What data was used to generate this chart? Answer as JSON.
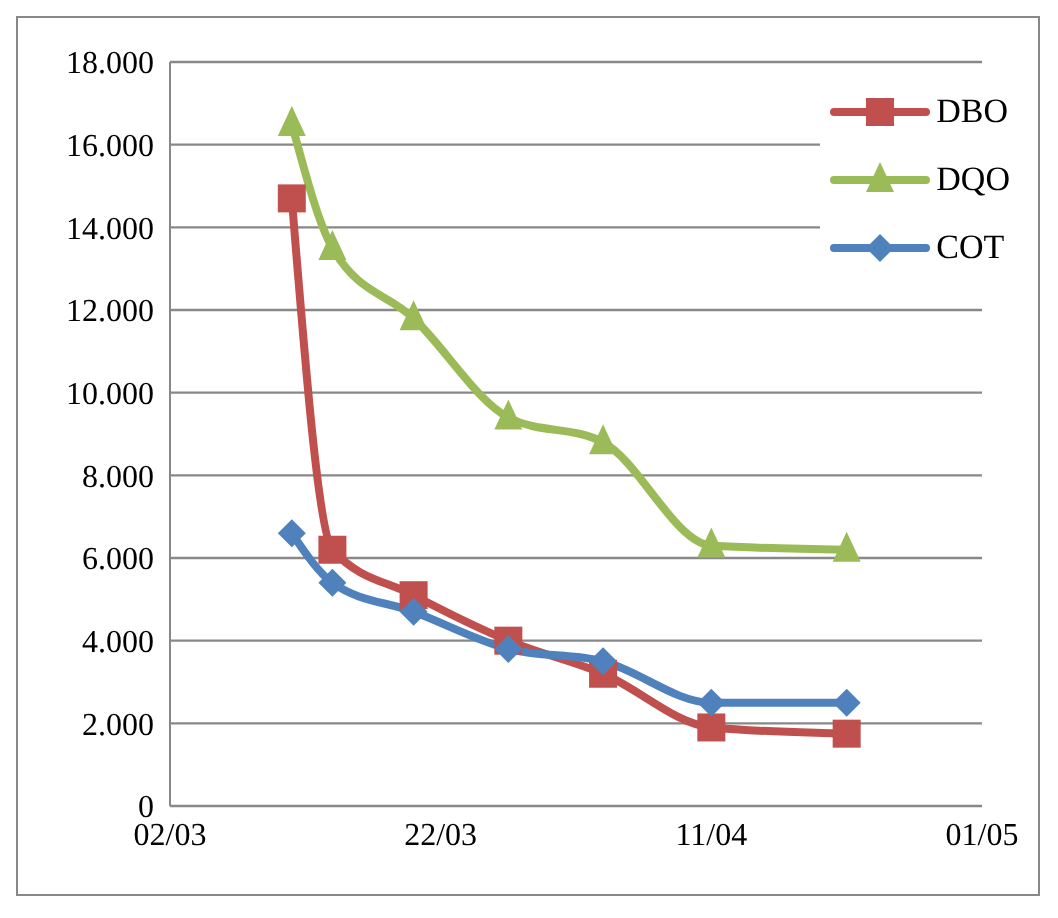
{
  "chart_data": {
    "type": "line",
    "x": [
      "--03-11",
      "--03-14",
      "--03-20",
      "--03-27",
      "--04-03",
      "--04-11",
      "--04-21"
    ],
    "series": [
      {
        "name": "DBO",
        "color": "#c0504d",
        "marker": "square",
        "values": [
          14700,
          6200,
          5100,
          4000,
          3200,
          1900,
          1750
        ]
      },
      {
        "name": "DQO",
        "color": "#9bbb59",
        "marker": "triangle",
        "values": [
          16500,
          13500,
          11800,
          9400,
          8800,
          6300,
          6200
        ]
      },
      {
        "name": "COT",
        "color": "#4f81bd",
        "marker": "diamond",
        "values": [
          6600,
          5400,
          4700,
          3800,
          3500,
          2500,
          2500
        ]
      }
    ],
    "xlim": [
      "--03-02",
      "--05-01"
    ],
    "xticks": [
      {
        "value": "--03-02",
        "label": "02/03"
      },
      {
        "value": "--03-22",
        "label": "22/03"
      },
      {
        "value": "--04-11",
        "label": "11/04"
      },
      {
        "value": "--05-01",
        "label": "01/05"
      }
    ],
    "ylim": [
      0,
      18000
    ],
    "yticks": [
      0,
      {
        "value": 2000,
        "label": "2.000"
      },
      {
        "value": 4000,
        "label": "4.000"
      },
      {
        "value": 6000,
        "label": "6.000"
      },
      {
        "value": 8000,
        "label": "8.000"
      },
      {
        "value": 10000,
        "label": "10.000"
      },
      {
        "value": 12000,
        "label": "12.000"
      },
      {
        "value": 14000,
        "label": "14.000"
      },
      {
        "value": 16000,
        "label": "16.000"
      },
      {
        "value": 18000,
        "label": "18.000"
      }
    ],
    "grid": "y",
    "legend": "top right",
    "line_style": "solid"
  }
}
